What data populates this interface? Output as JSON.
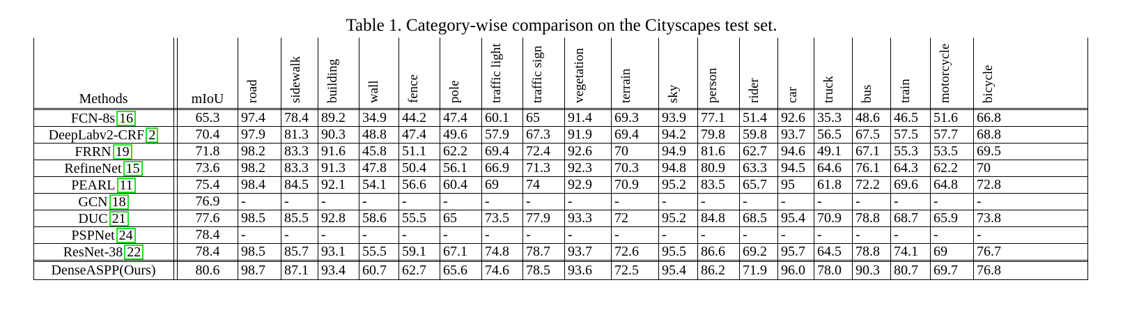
{
  "caption": "Table 1. Category-wise comparison on the Cityscapes test set.",
  "headers": {
    "methods": "Methods",
    "miou": "mIoU",
    "categories": [
      "road",
      "sidewalk",
      "building",
      "wall",
      "fence",
      "pole",
      "traffic light",
      "traffic sign",
      "vegetation",
      "terrain",
      "sky",
      "person",
      "rider",
      "car",
      "truck",
      "bus",
      "train",
      "motorcycle",
      "bicycle"
    ]
  },
  "rows": [
    {
      "name": "FCN-8s",
      "ref": "16",
      "miou": "65.3",
      "values": [
        "97.4",
        "78.4",
        "89.2",
        "34.9",
        "44.2",
        "47.4",
        "60.1",
        "65",
        "91.4",
        "69.3",
        "93.9",
        "77.1",
        "51.4",
        "92.6",
        "35.3",
        "48.6",
        "46.5",
        "51.6",
        "66.8"
      ]
    },
    {
      "name": "DeepLabv2-CRF",
      "ref": "2",
      "miou": "70.4",
      "values": [
        "97.9",
        "81.3",
        "90.3",
        "48.8",
        "47.4",
        "49.6",
        "57.9",
        "67.3",
        "91.9",
        "69.4",
        "94.2",
        "79.8",
        "59.8",
        "93.7",
        "56.5",
        "67.5",
        "57.5",
        "57.7",
        "68.8"
      ]
    },
    {
      "name": "FRRN",
      "ref": "19",
      "miou": "71.8",
      "values": [
        "98.2",
        "83.3",
        "91.6",
        "45.8",
        "51.1",
        "62.2",
        "69.4",
        "72.4",
        "92.6",
        "70",
        "94.9",
        "81.6",
        "62.7",
        "94.6",
        "49.1",
        "67.1",
        "55.3",
        "53.5",
        "69.5"
      ]
    },
    {
      "name": "RefineNet",
      "ref": "15",
      "miou": "73.6",
      "values": [
        "98.2",
        "83.3",
        "91.3",
        "47.8",
        "50.4",
        "56.1",
        "66.9",
        "71.3",
        "92.3",
        "70.3",
        "94.8",
        "80.9",
        "63.3",
        "94.5",
        "64.6",
        "76.1",
        "64.3",
        "62.2",
        "70"
      ]
    },
    {
      "name": "PEARL",
      "ref": "11",
      "miou": "75.4",
      "values": [
        "98.4",
        "84.5",
        "92.1",
        "54.1",
        "56.6",
        "60.4",
        "69",
        "74",
        "92.9",
        "70.9",
        "95.2",
        "83.5",
        "65.7",
        "95",
        "61.8",
        "72.2",
        "69.6",
        "64.8",
        "72.8"
      ]
    },
    {
      "name": "GCN",
      "ref": "18",
      "miou": "76.9",
      "values": [
        "-",
        "-",
        "-",
        "-",
        "-",
        "-",
        "-",
        "-",
        "-",
        "-",
        "-",
        "-",
        "-",
        "-",
        "-",
        "-",
        "-",
        "-",
        "-"
      ]
    },
    {
      "name": "DUC",
      "ref": "21",
      "miou": "77.6",
      "values": [
        "98.5",
        "85.5",
        "92.8",
        "58.6",
        "55.5",
        "65",
        "73.5",
        "77.9",
        "93.3",
        "72",
        "95.2",
        "84.8",
        "68.5",
        "95.4",
        "70.9",
        "78.8",
        "68.7",
        "65.9",
        "73.8"
      ]
    },
    {
      "name": "PSPNet",
      "ref": "24",
      "miou": "78.4",
      "values": [
        "-",
        "-",
        "-",
        "-",
        "-",
        "-",
        "-",
        "-",
        "-",
        "-",
        "-",
        "-",
        "-",
        "-",
        "-",
        "-",
        "-",
        "-",
        "-"
      ]
    },
    {
      "name": "ResNet-38",
      "ref": "22",
      "miou": "78.4",
      "values": [
        "98.5",
        "85.7",
        "93.1",
        "55.5",
        "59.1",
        "67.1",
        "74.8",
        "78.7",
        "93.7",
        "72.6",
        "95.5",
        "86.6",
        "69.2",
        "95.7",
        "64.5",
        "78.8",
        "74.1",
        "69",
        "76.7"
      ]
    }
  ],
  "ours": {
    "name": "DenseASPP(Ours)",
    "miou": "80.6",
    "values": [
      "98.7",
      "87.1",
      "93.4",
      "60.7",
      "62.7",
      "65.6",
      "74.6",
      "78.5",
      "93.6",
      "72.5",
      "95.4",
      "86.2",
      "71.9",
      "96.0",
      "78.0",
      "90.3",
      "80.7",
      "69.7",
      "76.8"
    ]
  }
}
